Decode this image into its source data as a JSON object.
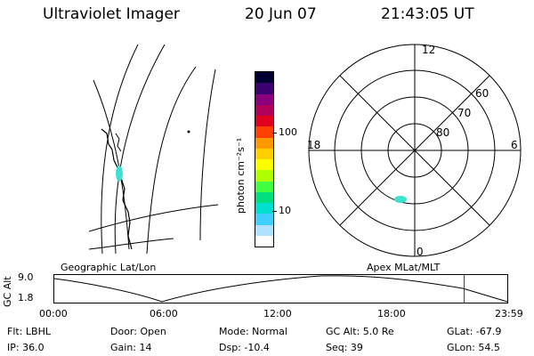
{
  "header": {
    "instrument": "Ultraviolet Imager",
    "date": "20 Jun 07",
    "time": "21:43:05 UT"
  },
  "colorbar": {
    "unit_label": "photon cm⁻²s⁻¹",
    "ticks": [
      {
        "value": 100,
        "label": "100"
      },
      {
        "value": 10,
        "label": "10"
      }
    ],
    "colors": [
      "#000033",
      "#3a0070",
      "#8a007a",
      "#b0005a",
      "#e00020",
      "#ff4000",
      "#ff9900",
      "#ffd000",
      "#ffff00",
      "#b0ff00",
      "#40ff40",
      "#00e080",
      "#00e0d0",
      "#40d0ff",
      "#b0e0ff",
      "#ffffff"
    ]
  },
  "polar_plot": {
    "mlt_labels": {
      "top": "12",
      "bottom": "0",
      "left": "18",
      "right": "6"
    },
    "lat_labels": [
      "60",
      "70",
      "80"
    ]
  },
  "timeline": {
    "left_caption": "Geographic Lat/Lon",
    "right_caption": "Apex MLat/MLT",
    "y_axis_label": "GC Alt",
    "y_ticks": [
      "9.0",
      "1.8"
    ],
    "x_ticks": [
      "00:00",
      "06:00",
      "12:00",
      "18:00",
      "23:59"
    ],
    "current_time_marker_hours": 21.72,
    "marker_color": "#cc0000"
  },
  "status": {
    "filter": "Flt: LBHL",
    "door": "Door: Open",
    "mode": "Mode: Normal",
    "gc_alt": "GC Alt: 5.0 Re",
    "glat": "GLat: -67.9",
    "ip": "IP: 36.0",
    "gain": "Gain: 14",
    "dsp": "Dsp:  -10.4",
    "seq": "Seq: 39",
    "glon": "GLon:  54.5"
  }
}
